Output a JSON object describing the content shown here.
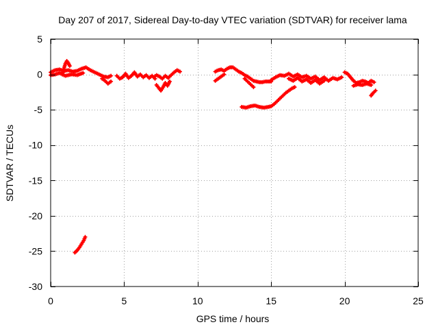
{
  "chart_data": {
    "type": "scatter",
    "title": "Day 207 of 2017, Sidereal Day-to-day VTEC variation (SDTVAR) for receiver lama",
    "xlabel": "GPS time / hours",
    "ylabel": "SDTVAR / TECUs",
    "xlim": [
      0,
      25
    ],
    "ylim": [
      -30,
      5
    ],
    "xticks": [
      0,
      5,
      10,
      15,
      20,
      25
    ],
    "yticks": [
      5,
      0,
      -5,
      -10,
      -15,
      -20,
      -25,
      -30
    ],
    "grid": true,
    "legend": "none",
    "marker_color": "#ff0000",
    "series": [
      {
        "name": "SDTVAR",
        "segments": [
          {
            "x": [
              0.0,
              0.3,
              0.6,
              0.9,
              1.2,
              1.5,
              1.8,
              2.1,
              2.4,
              2.7,
              3.0,
              3.3,
              3.6,
              3.9,
              4.1
            ],
            "y": [
              0.3,
              0.6,
              0.7,
              0.5,
              0.6,
              0.4,
              0.5,
              0.8,
              1.0,
              0.6,
              0.3,
              0.0,
              -0.3,
              -0.4,
              -0.2
            ]
          },
          {
            "x": [
              0.0,
              0.3,
              0.6,
              1.0,
              1.4,
              1.8,
              2.2
            ],
            "y": [
              -0.1,
              0.0,
              0.2,
              -0.2,
              0.0,
              -0.1,
              0.2
            ]
          },
          {
            "x": [
              0.8,
              0.9,
              1.0,
              1.1,
              1.2,
              1.3
            ],
            "y": [
              0.0,
              0.8,
              1.5,
              1.9,
              1.6,
              1.2
            ]
          },
          {
            "x": [
              3.5,
              3.7,
              3.9,
              4.1
            ],
            "y": [
              -0.6,
              -0.9,
              -1.3,
              -1.0
            ]
          },
          {
            "x": [
              4.5,
              4.7,
              4.9,
              5.1,
              5.3,
              5.5,
              5.7,
              5.9,
              6.1,
              6.3,
              6.5,
              6.7,
              6.9,
              7.1
            ],
            "y": [
              -0.2,
              -0.6,
              -0.4,
              0.1,
              -0.5,
              -0.2,
              0.3,
              -0.3,
              0.0,
              -0.4,
              -0.1,
              -0.5,
              -0.2,
              -0.6
            ]
          },
          {
            "x": [
              7.0,
              7.2,
              7.4,
              7.6,
              7.8,
              8.0,
              8.2,
              8.4,
              8.6,
              8.8
            ],
            "y": [
              -0.4,
              -0.1,
              -0.3,
              -0.6,
              -0.2,
              -0.5,
              -0.1,
              0.3,
              0.6,
              0.4
            ]
          },
          {
            "x": [
              7.2,
              7.35,
              7.5,
              7.65,
              7.8,
              7.95,
              8.1
            ],
            "y": [
              -1.5,
              -1.9,
              -2.3,
              -1.8,
              -1.2,
              -1.6,
              -1.0
            ]
          },
          {
            "x": [
              1.65,
              1.8,
              1.95,
              2.1,
              2.25,
              2.35
            ],
            "y": [
              -25.2,
              -24.9,
              -24.5,
              -24.0,
              -23.5,
              -23.0
            ]
          },
          {
            "x": [
              11.2,
              11.4,
              11.6,
              11.8,
              12.0,
              12.2,
              12.4,
              12.6,
              12.8,
              13.0,
              13.2,
              13.4,
              13.6,
              13.8,
              14.0,
              14.2,
              14.4,
              14.6,
              14.8,
              15.0
            ],
            "y": [
              0.4,
              0.6,
              0.7,
              0.5,
              0.8,
              1.0,
              1.0,
              0.7,
              0.4,
              0.2,
              -0.1,
              -0.3,
              -0.6,
              -0.9,
              -1.0,
              -1.1,
              -1.1,
              -1.0,
              -1.0,
              -1.0
            ]
          },
          {
            "x": [
              11.2,
              11.4,
              11.6,
              11.8
            ],
            "y": [
              -0.9,
              -0.6,
              -0.3,
              0.0
            ]
          },
          {
            "x": [
              13.2,
              13.4,
              13.6,
              13.8
            ],
            "y": [
              -0.6,
              -1.0,
              -1.4,
              -1.8
            ]
          },
          {
            "x": [
              13.0,
              13.3,
              13.6,
              13.9,
              14.2,
              14.5,
              14.8,
              15.0,
              15.2,
              15.4,
              15.6,
              15.8,
              16.0,
              16.2,
              16.4,
              16.6
            ],
            "y": [
              -4.6,
              -4.7,
              -4.5,
              -4.4,
              -4.6,
              -4.7,
              -4.6,
              -4.5,
              -4.2,
              -3.8,
              -3.4,
              -3.0,
              -2.6,
              -2.3,
              -2.0,
              -1.8
            ]
          },
          {
            "x": [
              15.0,
              15.3,
              15.6,
              15.9,
              16.2,
              16.5,
              16.8,
              17.1,
              17.4,
              17.7,
              18.0,
              18.3,
              18.6,
              18.9,
              19.2,
              19.5,
              19.8
            ],
            "y": [
              -0.8,
              -0.4,
              -0.1,
              -0.2,
              0.1,
              -0.3,
              0.0,
              -0.4,
              -0.2,
              -0.6,
              -0.3,
              -0.8,
              -0.4,
              -0.9,
              -0.5,
              -0.7,
              -0.4
            ]
          },
          {
            "x": [
              16.2,
              16.5,
              16.8,
              17.1,
              17.4,
              17.7,
              18.0,
              18.3,
              18.6
            ],
            "y": [
              -0.6,
              -0.9,
              -0.5,
              -1.0,
              -0.7,
              -1.2,
              -0.8,
              -1.3,
              -0.9
            ]
          },
          {
            "x": [
              20.0,
              20.2,
              20.4,
              20.6,
              20.8,
              21.0,
              21.2,
              21.4,
              21.6,
              21.8,
              22.0
            ],
            "y": [
              0.3,
              0.1,
              -0.4,
              -0.9,
              -1.2,
              -1.1,
              -0.9,
              -1.0,
              -1.2,
              -0.9,
              -1.1
            ]
          },
          {
            "x": [
              20.6,
              20.9,
              21.2,
              21.5,
              21.8
            ],
            "y": [
              -1.6,
              -1.4,
              -1.5,
              -1.3,
              -1.5
            ]
          },
          {
            "x": [
              21.8,
              21.9,
              22.0,
              22.1
            ],
            "y": [
              -3.0,
              -2.7,
              -2.5,
              -2.3
            ]
          }
        ]
      }
    ]
  }
}
